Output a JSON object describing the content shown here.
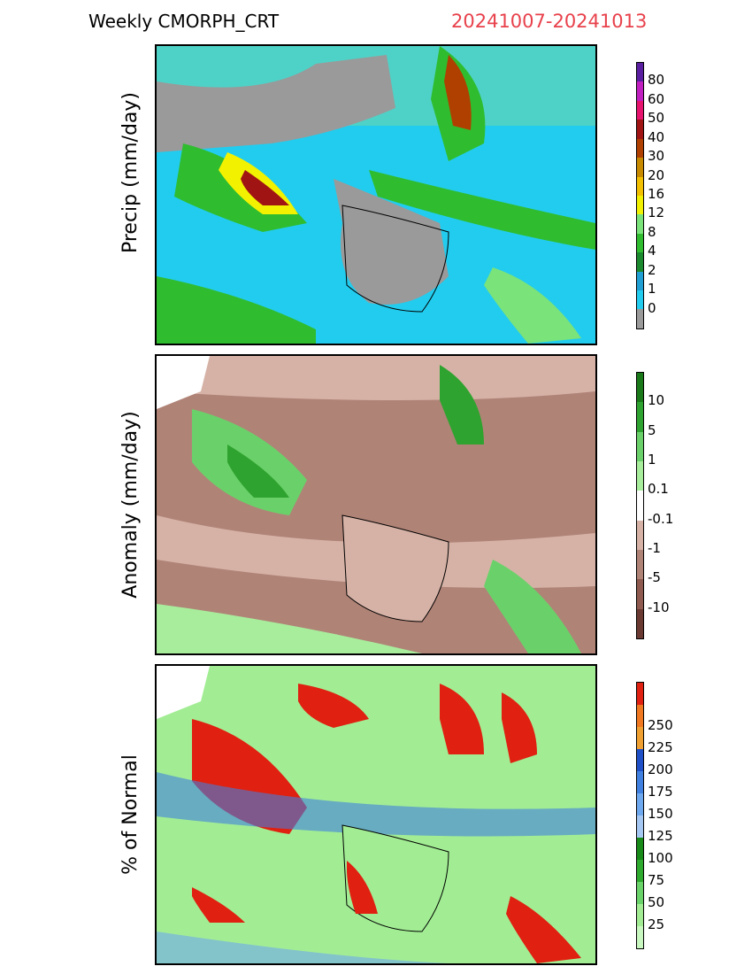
{
  "header": {
    "title": "Weekly CMORPH_CRT",
    "date_range": "20241007-20241013"
  },
  "panels": [
    {
      "id": "precip",
      "ylabel": "Precip (mm/day)",
      "colors": [
        "#9a9a9a",
        "#22ccee",
        "#1f9fd4",
        "#1b8a2f",
        "#2fbd2f",
        "#7ae37a",
        "#f2f200",
        "#f2c000",
        "#c88a00",
        "#b04000",
        "#a01414",
        "#e6146e",
        "#c020c0",
        "#5a1ea0"
      ],
      "ticks": [
        "0",
        "1",
        "2",
        "4",
        "8",
        "12",
        "16",
        "20",
        "30",
        "40",
        "50",
        "60",
        "80"
      ]
    },
    {
      "id": "anomaly",
      "ylabel": "Anomaly (mm/day)",
      "colors": [
        "#6a3a32",
        "#8f5a4f",
        "#b08377",
        "#d6b2a6",
        "#ffffff",
        "#a8ed9c",
        "#6ad16a",
        "#2fa32f",
        "#1a7a1a"
      ],
      "ticks": [
        "-10",
        "-5",
        "-1",
        "-0.1",
        "0.1",
        "1",
        "5",
        "10"
      ]
    },
    {
      "id": "percent",
      "ylabel": "% of Normal",
      "colors": [
        "#c8f7c0",
        "#a2ed94",
        "#6ad36a",
        "#2eaa2e",
        "#178a17",
        "#a4c8f2",
        "#6ea8ee",
        "#4080e0",
        "#2050c8",
        "#f0a030",
        "#f07820",
        "#e02010"
      ],
      "ticks": [
        "25",
        "50",
        "75",
        "100",
        "125",
        "150",
        "175",
        "200",
        "225",
        "250"
      ]
    }
  ]
}
